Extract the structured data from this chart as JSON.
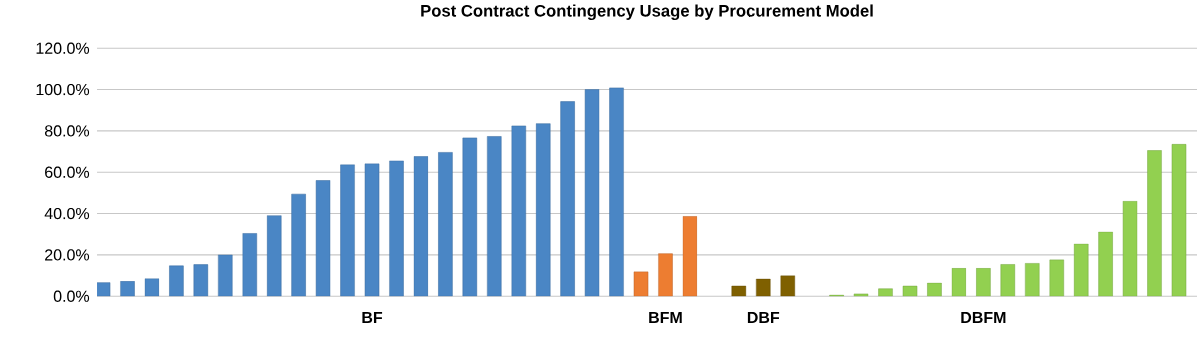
{
  "chart_data": {
    "type": "bar",
    "title": "Post Contract Contingency Usage by Procurement Model",
    "categories": [
      null,
      null,
      null,
      null,
      null,
      null,
      null,
      null,
      null,
      null,
      null,
      "BF",
      null,
      null,
      null,
      null,
      null,
      null,
      null,
      null,
      null,
      null,
      null,
      "BFM",
      null,
      null,
      null,
      "DBF",
      null,
      null,
      null,
      null,
      null,
      null,
      null,
      null,
      "DBFM",
      null,
      null,
      null,
      null,
      null,
      null,
      null,
      null
    ],
    "values": [
      6.6,
      7.2,
      8.5,
      14.7,
      15.3,
      20.0,
      30.4,
      39.0,
      49.4,
      56.0,
      63.6,
      64.1,
      65.5,
      67.6,
      69.6,
      76.6,
      77.3,
      82.4,
      83.5,
      94.2,
      100,
      100.8,
      11.8,
      20.6,
      38.6,
      null,
      4.9,
      8.3,
      9.9,
      null,
      0.6,
      1.1,
      3.6,
      4.9,
      6.4,
      13.5,
      13.5,
      15.4,
      15.9,
      17.6,
      25.3,
      31.1,
      46.0,
      70.5,
      73.5
    ],
    "colors": [
      "#4a86c5",
      "#4a86c5",
      "#4a86c5",
      "#4a86c5",
      "#4a86c5",
      "#4a86c5",
      "#4a86c5",
      "#4a86c5",
      "#4a86c5",
      "#4a86c5",
      "#4a86c5",
      "#4a86c5",
      "#4a86c5",
      "#4a86c5",
      "#4a86c5",
      "#4a86c5",
      "#4a86c5",
      "#4a86c5",
      "#4a86c5",
      "#4a86c5",
      "#4a86c5",
      "#4a86c5",
      "#ed7d31",
      "#ed7d31",
      "#ed7d31",
      null,
      "#7f6000",
      "#7f6000",
      "#7f6000",
      null,
      "#92d050",
      "#92d050",
      "#92d050",
      "#92d050",
      "#92d050",
      "#92d050",
      "#92d050",
      "#92d050",
      "#92d050",
      "#92d050",
      "#92d050",
      "#92d050",
      "#92d050",
      "#92d050",
      "#92d050"
    ],
    "ylim": [
      0,
      120
    ],
    "yticks": [
      {
        "value": 0,
        "label": "0.0%"
      },
      {
        "value": 20,
        "label": "20.0%"
      },
      {
        "value": 40,
        "label": "40.0%"
      },
      {
        "value": 60,
        "label": "60.0%"
      },
      {
        "value": 80,
        "label": "80.0%"
      },
      {
        "value": 100,
        "label": "100.0%"
      },
      {
        "value": 120,
        "label": "120.0%"
      }
    ],
    "grid": "y"
  }
}
